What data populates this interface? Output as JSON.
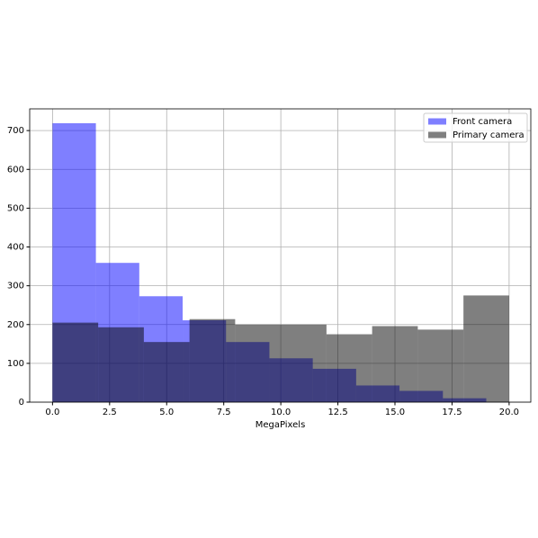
{
  "chart_data": {
    "type": "histogram",
    "xlabel": "MegaPixels",
    "series": [
      {
        "name": "Front camera",
        "color": "#0000ff",
        "alpha": 0.5,
        "bins": [
          0,
          1.9,
          3.8,
          5.7,
          7.6,
          9.5,
          11.4,
          13.3,
          15.2,
          17.1,
          19.0
        ],
        "values": [
          719,
          359,
          273,
          211,
          155,
          113,
          86,
          43,
          29,
          10
        ]
      },
      {
        "name": "Primary camera",
        "color": "#000000",
        "alpha": 0.5,
        "bins": [
          0,
          2,
          4,
          6,
          8,
          10,
          12,
          14,
          16,
          18,
          20
        ],
        "values": [
          205,
          193,
          155,
          214,
          200,
          200,
          175,
          196,
          187,
          275
        ]
      }
    ],
    "xlim": [
      -1,
      20.95
    ],
    "ylim": [
      0,
      756
    ],
    "xticks": [
      {
        "value": 0,
        "label": "0.0"
      },
      {
        "value": 2.5,
        "label": "2.5"
      },
      {
        "value": 5,
        "label": "5.0"
      },
      {
        "value": 7.5,
        "label": "7.5"
      },
      {
        "value": 10,
        "label": "10.0"
      },
      {
        "value": 12.5,
        "label": "12.5"
      },
      {
        "value": 15,
        "label": "15.0"
      },
      {
        "value": 17.5,
        "label": "17.5"
      },
      {
        "value": 20,
        "label": "20.0"
      }
    ],
    "yticks": [
      0,
      100,
      200,
      300,
      400,
      500,
      600,
      700
    ],
    "grid": true,
    "legend": "upper right"
  }
}
